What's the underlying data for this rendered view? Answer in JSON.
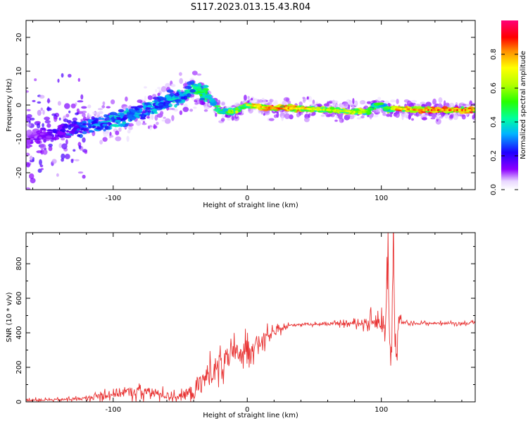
{
  "title": "S117.2023.013.15.43.R04",
  "chart_data": [
    {
      "type": "heatmap",
      "xlabel": "Height of straight line (km)",
      "ylabel": "Frequency (Hz)",
      "xlim": [
        -165,
        170
      ],
      "ylim": [
        -25,
        25
      ],
      "xticks": [
        -100,
        0,
        100
      ],
      "xtick_labels": [
        "-100",
        "0",
        "100"
      ],
      "yticks": [
        -20,
        -10,
        0,
        10,
        20
      ],
      "ytick_labels": [
        "-20",
        "-10",
        "0",
        "10",
        "20"
      ],
      "grid": false,
      "colorbar": {
        "label": "Normalized spectral amplitude",
        "range": [
          0,
          1
        ],
        "ticks": [
          0.0,
          0.2,
          0.4,
          0.6,
          0.8
        ],
        "tick_labels": [
          "0.0",
          "0.2",
          "0.4",
          "0.6",
          "0.8"
        ],
        "colors": [
          "#ffffff",
          "#8c00ff",
          "#0000ff",
          "#00c8ff",
          "#00ff64",
          "#78ff00",
          "#ffff00",
          "#ff8c00",
          "#ff0000",
          "#ff0078"
        ]
      },
      "ridge_x": [
        -165,
        -130,
        -100,
        -80,
        -60,
        -45,
        -40,
        -30,
        -20,
        -10,
        0,
        20,
        40,
        60,
        80,
        90,
        95,
        100,
        105,
        110,
        130,
        150,
        170
      ],
      "ridge_y": [
        -10,
        -7,
        -5,
        -2,
        1,
        3,
        5,
        3,
        -2,
        -2,
        0,
        -1,
        -1,
        -1.5,
        -2,
        -2,
        0,
        0,
        -1.5,
        -1,
        -1.5,
        -1.5,
        -1.5
      ],
      "ridge_amplitude": [
        0.1,
        0.25,
        0.35,
        0.35,
        0.35,
        0.4,
        0.45,
        0.45,
        0.55,
        0.6,
        0.7,
        0.85,
        0.8,
        0.65,
        0.7,
        0.55,
        0.45,
        0.5,
        0.55,
        0.75,
        0.85,
        0.85,
        0.85
      ]
    },
    {
      "type": "line",
      "xlabel": "Height of straight line (km)",
      "ylabel": "SNR (10 * v/v)",
      "xlim": [
        -165,
        170
      ],
      "ylim": [
        0,
        980
      ],
      "xticks": [
        -100,
        0,
        100
      ],
      "xtick_labels": [
        "-100",
        "0",
        "100"
      ],
      "yticks": [
        0,
        200,
        400,
        600,
        800
      ],
      "ytick_labels": [
        "0",
        "200",
        "400",
        "600",
        "800"
      ],
      "grid": false,
      "color": "#e83232",
      "x": [
        -165,
        -140,
        -120,
        -110,
        -100,
        -90,
        -80,
        -70,
        -60,
        -50,
        -40,
        -30,
        -20,
        -10,
        0,
        10,
        20,
        30,
        40,
        60,
        80,
        90,
        95,
        100,
        103,
        105,
        107,
        109,
        111,
        113,
        115,
        120,
        140,
        170
      ],
      "y": [
        10,
        12,
        20,
        35,
        50,
        55,
        60,
        50,
        35,
        30,
        60,
        150,
        220,
        270,
        310,
        350,
        400,
        440,
        450,
        450,
        455,
        460,
        470,
        450,
        420,
        900,
        150,
        820,
        200,
        480,
        460,
        455,
        455,
        455
      ],
      "noise": [
        10,
        10,
        15,
        35,
        45,
        45,
        50,
        45,
        30,
        30,
        80,
        110,
        110,
        100,
        80,
        70,
        30,
        15,
        10,
        10,
        20,
        40,
        70,
        60,
        250,
        300,
        250,
        300,
        200,
        80,
        15,
        10,
        10,
        10
      ]
    }
  ]
}
